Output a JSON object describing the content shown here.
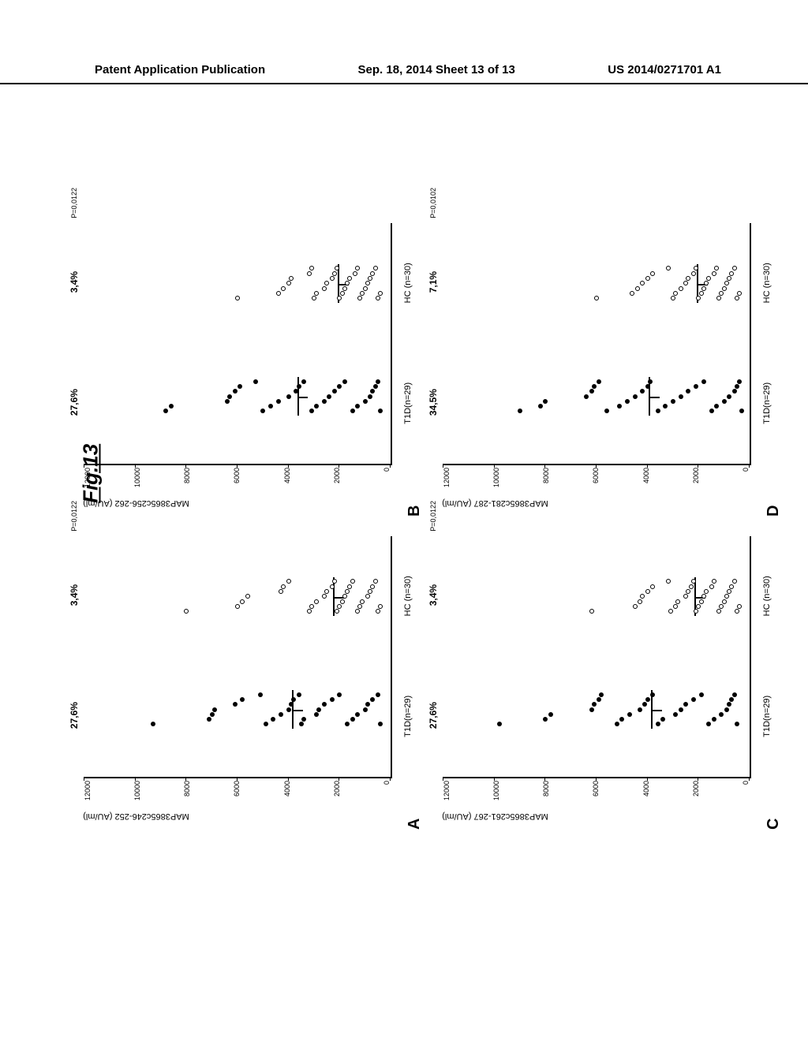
{
  "header": {
    "left": "Patent Application Publication",
    "center": "Sep. 18, 2014  Sheet 13 of 13",
    "right": "US 2014/0271701 A1"
  },
  "figure_label": "Fig.13",
  "axis": {
    "ymin": 0,
    "ymax": 12000,
    "ystep": 2000,
    "yticks": [
      "0",
      "2000",
      "4000",
      "6000",
      "8000",
      "10000",
      "12000"
    ]
  },
  "groups": {
    "g1_label": "T1D(n=29)",
    "g2_label": "HC (n=30)"
  },
  "panels": [
    {
      "letter": "A",
      "ylabel": "MAP3865c246-252 (AU/ml)",
      "pct1": "27,6%",
      "pct2": "3,4%",
      "pval": "P=0,0122",
      "g1_median": 3800,
      "g2_median": 2200,
      "g1_points": [
        9300,
        7100,
        7000,
        6900,
        6100,
        5800,
        5100,
        4900,
        4600,
        4300,
        4000,
        3900,
        3800,
        3600,
        3500,
        3400,
        2900,
        2800,
        2600,
        2300,
        2000,
        1700,
        1500,
        1300,
        1000,
        900,
        700,
        500,
        400
      ],
      "g2_points": [
        8000,
        6000,
        5800,
        5600,
        4300,
        4200,
        4000,
        3200,
        3100,
        2900,
        2600,
        2500,
        2300,
        2200,
        2100,
        2000,
        1900,
        1800,
        1700,
        1600,
        1500,
        1300,
        1200,
        1100,
        900,
        800,
        700,
        600,
        500,
        400
      ]
    },
    {
      "letter": "B",
      "ylabel": "MAP3865c256-262 (AU/ml)",
      "pct1": "27,6%",
      "pct2": "3,4%",
      "pval": "P=0,0122",
      "g1_median": 3600,
      "g2_median": 2000,
      "g1_points": [
        8800,
        8600,
        6400,
        6300,
        6100,
        5900,
        5300,
        5000,
        4700,
        4400,
        4000,
        3700,
        3600,
        3400,
        3100,
        2900,
        2600,
        2400,
        2200,
        2000,
        1800,
        1500,
        1300,
        1000,
        800,
        700,
        600,
        500,
        400
      ],
      "g2_points": [
        6000,
        4400,
        4200,
        4000,
        3900,
        3200,
        3100,
        3000,
        2900,
        2600,
        2500,
        2300,
        2200,
        2100,
        2000,
        1900,
        1800,
        1700,
        1600,
        1400,
        1300,
        1200,
        1100,
        1000,
        900,
        800,
        700,
        600,
        500,
        400
      ]
    },
    {
      "letter": "C",
      "ylabel": "MAP3865c261-267 (AU/ml)",
      "pct1": "27,6%",
      "pct2": "3,4%",
      "pval": "P=0,0122",
      "g1_median": 3800,
      "g2_median": 2100,
      "g1_points": [
        9800,
        8000,
        7800,
        6200,
        6100,
        5900,
        5800,
        5200,
        5000,
        4700,
        4300,
        4100,
        4000,
        3800,
        3600,
        3400,
        2900,
        2700,
        2500,
        2200,
        1900,
        1600,
        1400,
        1100,
        900,
        800,
        700,
        600,
        500
      ],
      "g2_points": [
        6200,
        4500,
        4300,
        4200,
        4000,
        3800,
        3200,
        3100,
        2900,
        2800,
        2500,
        2400,
        2300,
        2200,
        2100,
        2000,
        1900,
        1800,
        1700,
        1500,
        1400,
        1200,
        1100,
        1000,
        900,
        800,
        700,
        600,
        500,
        400
      ]
    },
    {
      "letter": "D",
      "ylabel": "MAP3865c281-287 (AU/ml)",
      "pct1": "34,5%",
      "pct2": "7,1%",
      "pval": "P=0,0102",
      "g1_median": 3900,
      "g2_median": 2000,
      "g1_points": [
        9000,
        8200,
        8000,
        6400,
        6200,
        6100,
        5900,
        5600,
        5100,
        4800,
        4500,
        4200,
        4000,
        3900,
        3600,
        3300,
        3000,
        2700,
        2400,
        2100,
        1800,
        1500,
        1300,
        1000,
        800,
        600,
        500,
        400,
        300
      ],
      "g2_points": [
        6000,
        4600,
        4400,
        4200,
        4000,
        3800,
        3200,
        3000,
        2900,
        2700,
        2500,
        2400,
        2200,
        2100,
        2000,
        1900,
        1800,
        1700,
        1600,
        1400,
        1300,
        1200,
        1100,
        1000,
        900,
        800,
        700,
        600,
        500,
        400
      ]
    }
  ],
  "colors": {
    "point": "#000000",
    "axis": "#000000",
    "bg": "#ffffff"
  }
}
